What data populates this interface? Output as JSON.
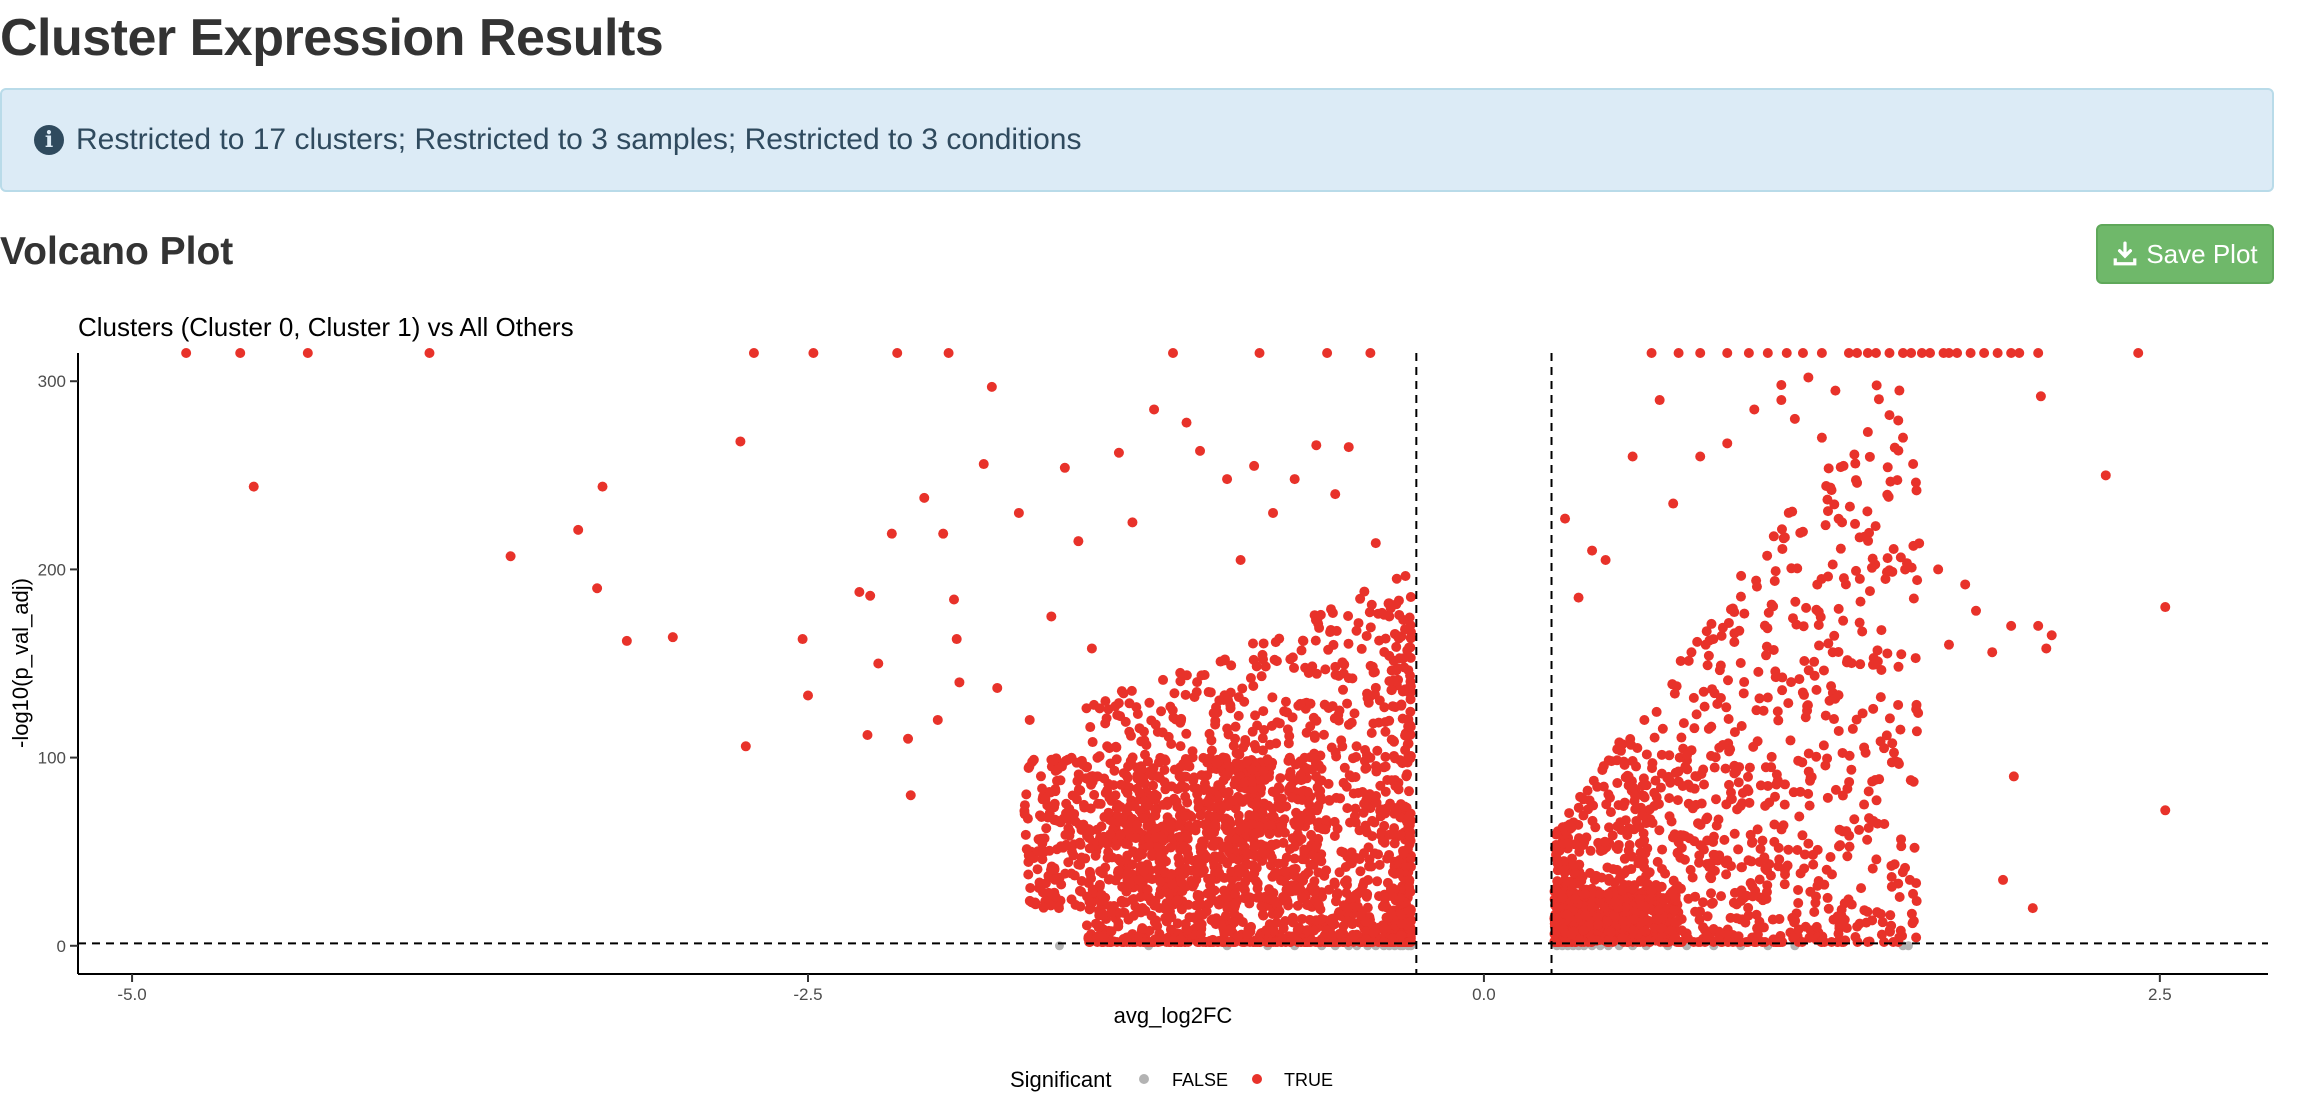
{
  "page": {
    "title": "Cluster Expression Results",
    "info_text": "Restricted to 17 clusters; Restricted to 3 samples; Restricted to 3 conditions",
    "section_title": "Volcano Plot",
    "save_label": "Save Plot"
  },
  "colors": {
    "significant": "#e8322a",
    "not_significant": "#b3b3b3",
    "info_bg": "#dcebf6",
    "button_bg": "#6fb86a"
  },
  "icons": {
    "info": "info-circle-icon",
    "save": "download-icon"
  },
  "chart_data": {
    "type": "scatter",
    "title": "Clusters (Cluster 0, Cluster 1) vs All Others",
    "xlabel": "avg_log2FC",
    "ylabel": "-log10(p_val_adj)",
    "xlim": [
      -5.2,
      2.9
    ],
    "ylim": [
      -15,
      315
    ],
    "xticks": [
      -5.0,
      -2.5,
      0.0,
      2.5
    ],
    "xtick_labels": [
      "-5.0",
      "-2.5",
      "0.0",
      "2.5"
    ],
    "yticks": [
      0,
      100,
      200,
      300
    ],
    "ytick_labels": [
      "0",
      "100",
      "200",
      "300"
    ],
    "vlines": [
      -0.25,
      0.25
    ],
    "hline": 1.3,
    "grid": false,
    "legend": {
      "title": "Significant",
      "position": "bottom",
      "entries": [
        {
          "label": "FALSE",
          "color": "#b3b3b3"
        },
        {
          "label": "TRUE",
          "color": "#e8322a"
        }
      ]
    },
    "series": [
      {
        "name": "TRUE",
        "color": "#e8322a",
        "points": [
          [
            -4.8,
            315
          ],
          [
            -4.6,
            315
          ],
          [
            -4.35,
            315
          ],
          [
            -3.9,
            315
          ],
          [
            -2.7,
            315
          ],
          [
            -2.48,
            315
          ],
          [
            -2.17,
            315
          ],
          [
            -1.98,
            315
          ],
          [
            -1.15,
            315
          ],
          [
            -0.83,
            315
          ],
          [
            -0.58,
            315
          ],
          [
            -0.42,
            315
          ],
          [
            -4.55,
            244
          ],
          [
            -3.6,
            207
          ],
          [
            -3.35,
            221
          ],
          [
            -3.28,
            190
          ],
          [
            -3.26,
            244
          ],
          [
            -3.17,
            162
          ],
          [
            -3.0,
            164
          ],
          [
            -2.75,
            268
          ],
          [
            -2.73,
            106
          ],
          [
            -2.52,
            163
          ],
          [
            -2.5,
            133
          ],
          [
            -2.31,
            188
          ],
          [
            -2.27,
            186
          ],
          [
            -2.28,
            112
          ],
          [
            -2.24,
            150
          ],
          [
            -2.19,
            219
          ],
          [
            -2.12,
            80
          ],
          [
            -2.13,
            110
          ],
          [
            -2.07,
            238
          ],
          [
            -2.02,
            120
          ],
          [
            -2.0,
            219
          ],
          [
            -1.96,
            184
          ],
          [
            -1.95,
            163
          ],
          [
            -1.94,
            140
          ],
          [
            -1.85,
            256
          ],
          [
            -1.82,
            297
          ],
          [
            -1.8,
            137
          ],
          [
            -1.72,
            230
          ],
          [
            -1.68,
            120
          ],
          [
            -1.6,
            175
          ],
          [
            -1.55,
            254
          ],
          [
            -1.5,
            215
          ],
          [
            -1.45,
            158
          ],
          [
            -1.4,
            130
          ],
          [
            -1.35,
            262
          ],
          [
            -1.3,
            225
          ],
          [
            -1.22,
            285
          ],
          [
            -1.1,
            278
          ],
          [
            -1.05,
            263
          ],
          [
            -0.95,
            248
          ],
          [
            -0.9,
            205
          ],
          [
            -0.85,
            255
          ],
          [
            -0.78,
            230
          ],
          [
            -0.7,
            248
          ],
          [
            -0.62,
            266
          ],
          [
            -0.55,
            240
          ],
          [
            -0.5,
            265
          ],
          [
            -0.4,
            214
          ],
          [
            -0.35,
            175
          ],
          [
            2.3,
            250
          ],
          [
            2.52,
            180
          ],
          [
            2.52,
            72
          ],
          [
            1.92,
            35
          ],
          [
            2.03,
            20
          ],
          [
            2.05,
            170
          ],
          [
            2.1,
            165
          ],
          [
            2.08,
            158
          ],
          [
            1.96,
            90
          ],
          [
            0.3,
            227
          ],
          [
            0.35,
            185
          ],
          [
            0.4,
            210
          ],
          [
            0.45,
            205
          ],
          [
            0.55,
            260
          ],
          [
            0.65,
            290
          ],
          [
            0.7,
            235
          ],
          [
            0.8,
            260
          ],
          [
            0.9,
            267
          ],
          [
            1.0,
            285
          ],
          [
            1.1,
            298
          ],
          [
            1.2,
            302
          ],
          [
            1.3,
            295
          ],
          [
            1.42,
            273
          ],
          [
            1.5,
            282
          ],
          [
            1.55,
            270
          ],
          [
            1.6,
            242
          ],
          [
            1.68,
            200
          ],
          [
            1.78,
            192
          ],
          [
            1.82,
            178
          ],
          [
            1.88,
            156
          ],
          [
            1.72,
            160
          ],
          [
            1.6,
            128
          ],
          [
            1.48,
            105
          ],
          [
            1.1,
            290
          ],
          [
            1.15,
            280
          ],
          [
            1.25,
            270
          ],
          [
            1.33,
            255
          ],
          [
            1.38,
            246
          ],
          [
            2.06,
            292
          ],
          [
            1.95,
            170
          ],
          [
            1.0,
            2
          ],
          [
            1.25,
            2
          ],
          [
            0.62,
            315
          ],
          [
            0.72,
            315
          ],
          [
            0.8,
            315
          ],
          [
            0.9,
            315
          ],
          [
            0.98,
            315
          ],
          [
            1.05,
            315
          ],
          [
            1.12,
            315
          ],
          [
            1.18,
            315
          ],
          [
            1.25,
            315
          ],
          [
            1.35,
            315
          ],
          [
            1.42,
            315
          ],
          [
            1.5,
            315
          ],
          [
            1.58,
            315
          ],
          [
            1.65,
            315
          ],
          [
            1.72,
            315
          ],
          [
            1.8,
            315
          ],
          [
            1.9,
            315
          ],
          [
            1.98,
            315
          ],
          [
            2.05,
            315
          ],
          [
            2.42,
            315
          ],
          [
            1.38,
            315
          ],
          [
            1.45,
            315
          ],
          [
            1.55,
            315
          ],
          [
            1.62,
            315
          ],
          [
            1.7,
            315
          ],
          [
            1.75,
            315
          ],
          [
            1.85,
            315
          ],
          [
            1.95,
            315
          ]
        ]
      },
      {
        "name": "FALSE",
        "color": "#b3b3b3",
        "points": [
          [
            -1.57,
            0
          ],
          [
            -1.24,
            0
          ],
          [
            -0.95,
            0
          ],
          [
            -0.8,
            0
          ],
          [
            -0.7,
            0
          ],
          [
            -0.6,
            0
          ],
          [
            -0.55,
            0
          ],
          [
            -0.5,
            0
          ],
          [
            -0.47,
            0
          ],
          [
            -0.43,
            0
          ],
          [
            -0.4,
            0
          ],
          [
            -0.37,
            0
          ],
          [
            -0.35,
            0
          ],
          [
            -0.33,
            0
          ],
          [
            -0.31,
            0
          ],
          [
            -0.3,
            0
          ],
          [
            -0.28,
            0
          ],
          [
            -0.27,
            0
          ],
          [
            0.27,
            0
          ],
          [
            0.29,
            0
          ],
          [
            0.31,
            0
          ],
          [
            0.33,
            0
          ],
          [
            0.35,
            0
          ],
          [
            0.37,
            0
          ],
          [
            0.4,
            0
          ],
          [
            0.43,
            0
          ],
          [
            0.46,
            0
          ],
          [
            0.5,
            0
          ],
          [
            0.55,
            0
          ],
          [
            0.6,
            0
          ],
          [
            0.68,
            0
          ],
          [
            0.75,
            0
          ],
          [
            0.85,
            0
          ],
          [
            0.95,
            0
          ],
          [
            1.05,
            0
          ],
          [
            1.15,
            0
          ],
          [
            1.55,
            0
          ],
          [
            1.57,
            0
          ]
        ]
      }
    ]
  }
}
